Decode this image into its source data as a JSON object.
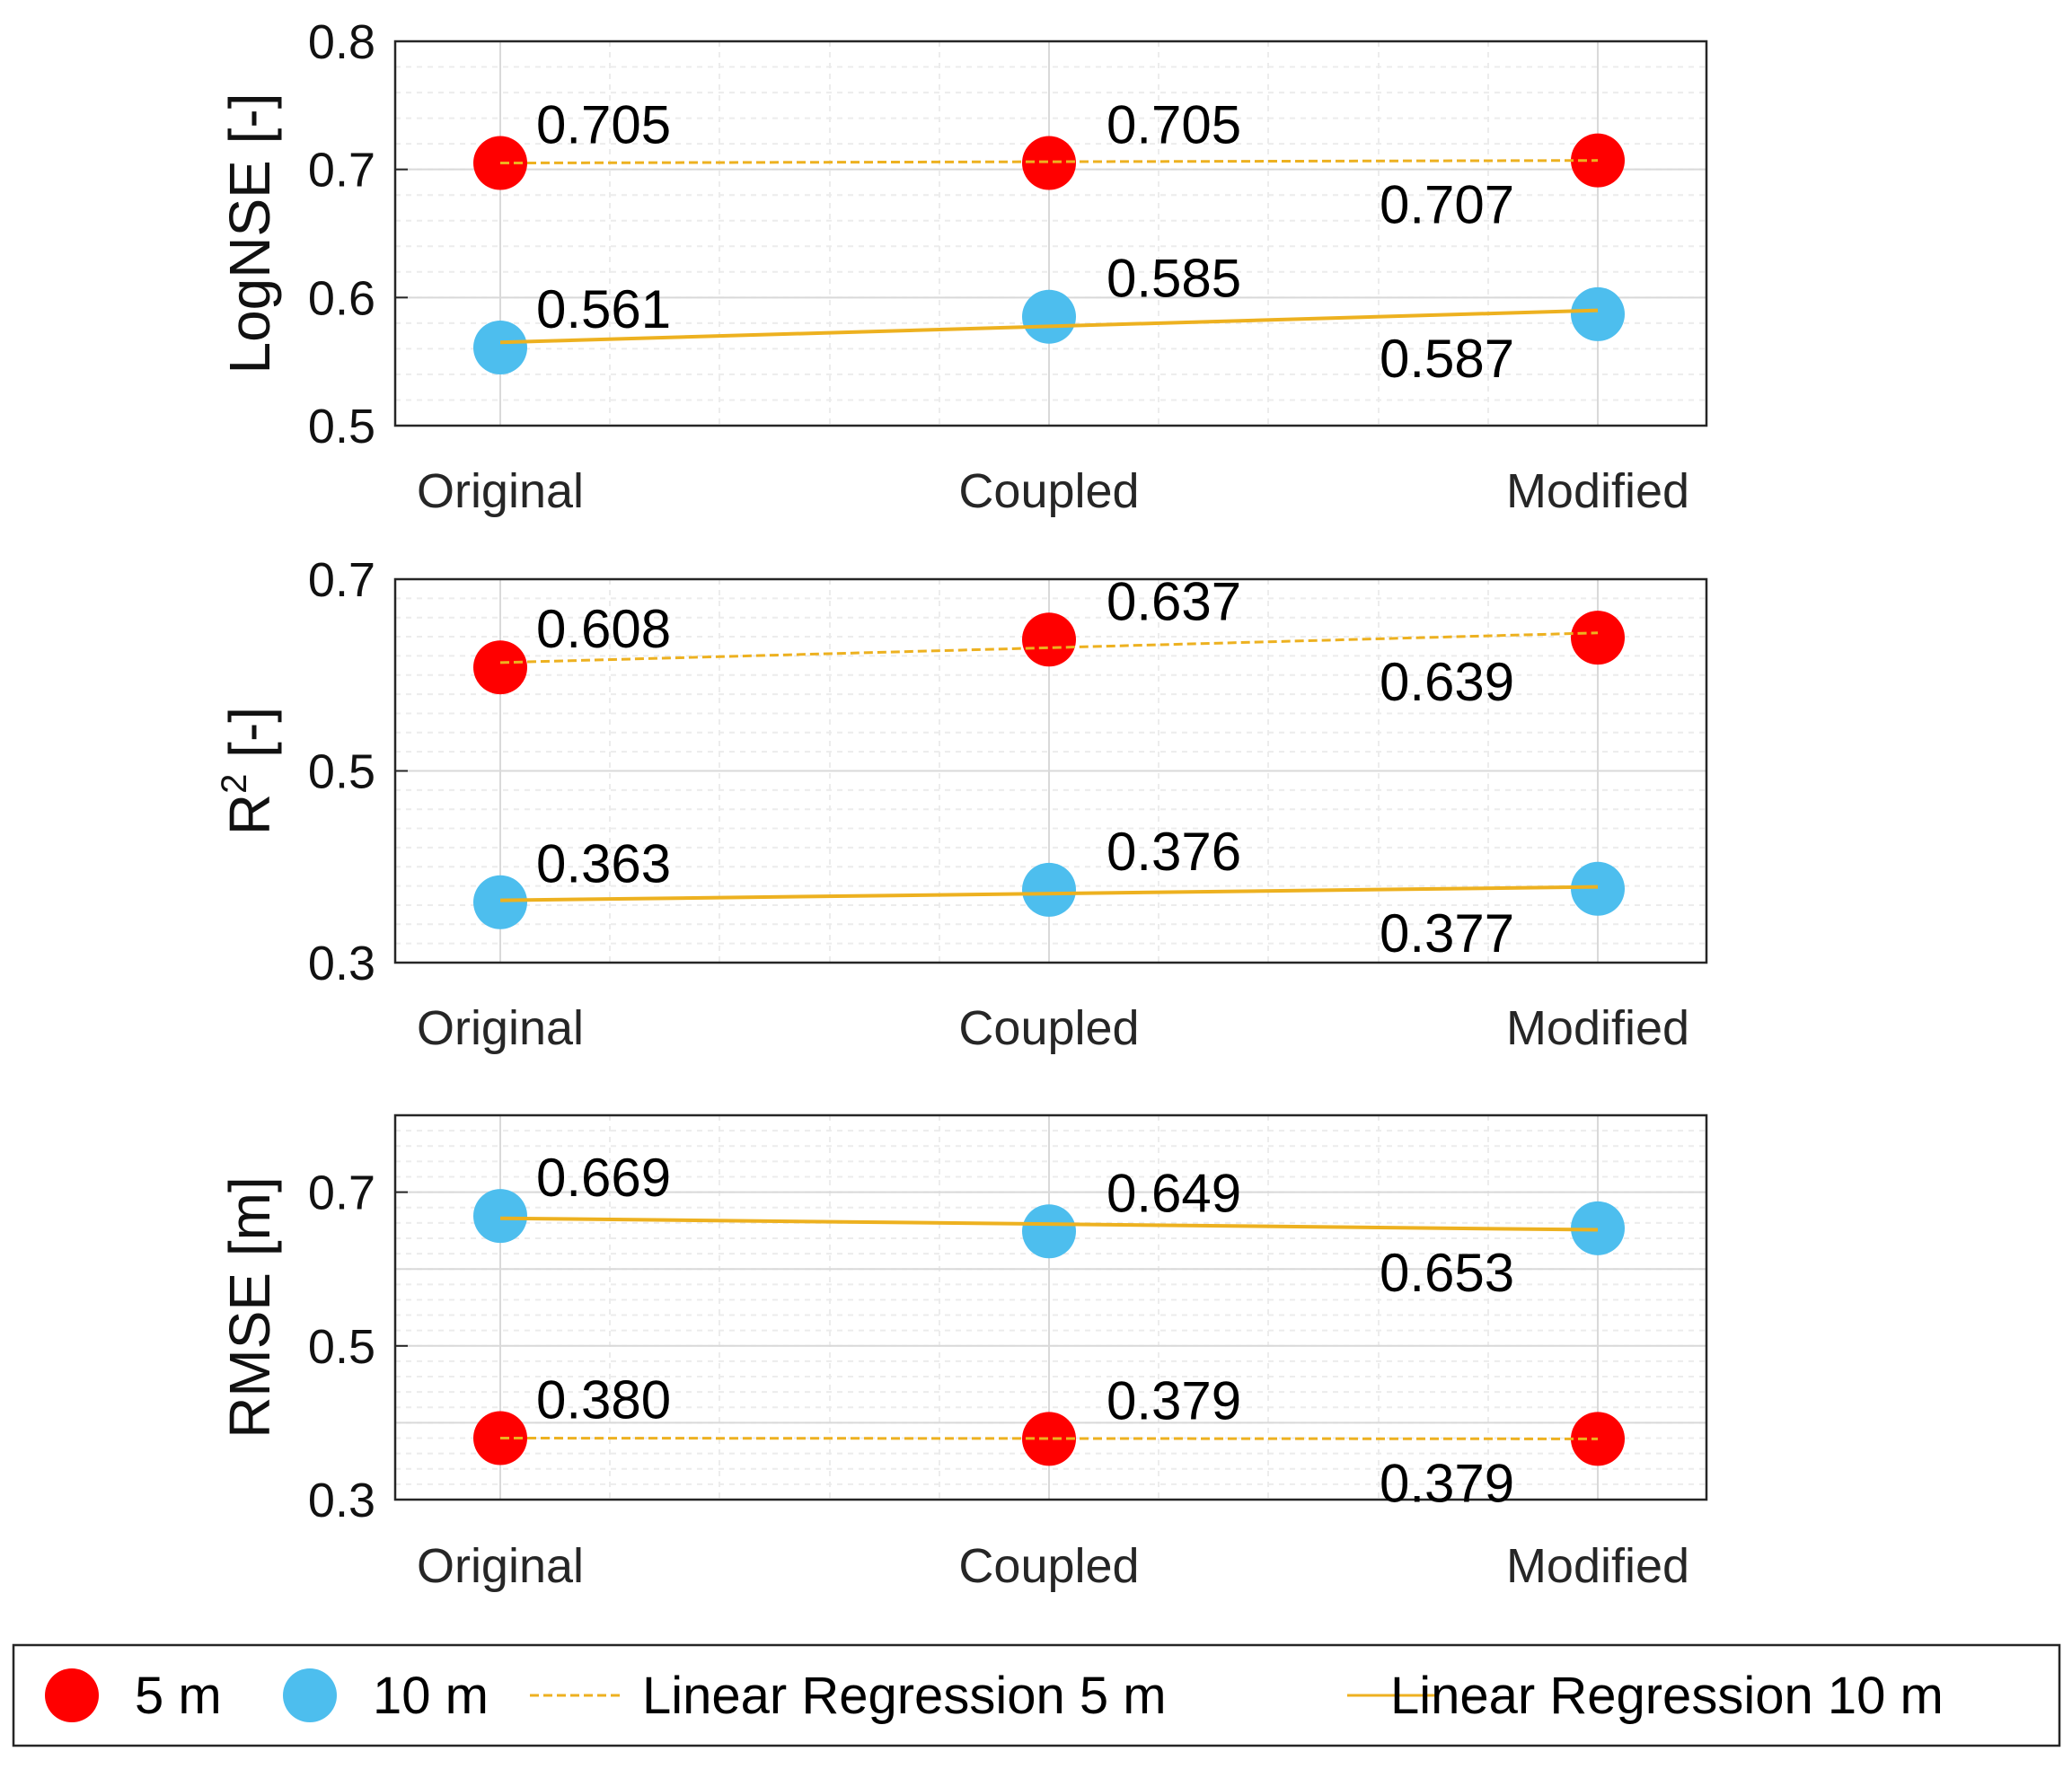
{
  "colors": {
    "series_5m": "#ff0000",
    "series_10m": "#4dbeee",
    "regression": "#edb120",
    "grid": "#d9d9d9",
    "axis": "#262626"
  },
  "chart_data": [
    {
      "type": "scatter",
      "ylabel": "LogNSE [-]",
      "categories": [
        "Original",
        "Coupled",
        "Modified"
      ],
      "ylim": [
        0.5,
        0.8
      ],
      "yticks": [
        "0.5",
        "0.6",
        "0.7",
        "0.8"
      ],
      "grid": true,
      "series": [
        {
          "name": "5 m",
          "color": "#ff0000",
          "values": [
            0.705,
            0.705,
            0.707
          ],
          "labels": [
            "0.705",
            "0.705",
            "0.707"
          ]
        },
        {
          "name": "10 m",
          "color": "#4dbeee",
          "values": [
            0.561,
            0.585,
            0.587
          ],
          "labels": [
            "0.561",
            "0.585",
            "0.587"
          ]
        }
      ],
      "regression": [
        {
          "name": "Linear Regression 5 m",
          "style": "dashed",
          "from": 0.705,
          "to": 0.707
        },
        {
          "name": "Linear Regression 10 m",
          "style": "solid",
          "from": 0.565,
          "to": 0.59
        }
      ]
    },
    {
      "type": "scatter",
      "ylabel_main": "R",
      "ylabel_sup": "2",
      "ylabel_unit": " [-]",
      "categories": [
        "Original",
        "Coupled",
        "Modified"
      ],
      "ylim": [
        0.3,
        0.7
      ],
      "yticks": [
        "0.3",
        "0.5",
        "0.7"
      ],
      "grid": true,
      "series": [
        {
          "name": "5 m",
          "color": "#ff0000",
          "values": [
            0.608,
            0.637,
            0.639
          ],
          "labels": [
            "0.608",
            "0.637",
            "0.639"
          ]
        },
        {
          "name": "10 m",
          "color": "#4dbeee",
          "values": [
            0.363,
            0.376,
            0.377
          ],
          "labels": [
            "0.363",
            "0.376",
            "0.377"
          ]
        }
      ],
      "regression": [
        {
          "name": "Linear Regression 5 m",
          "style": "dashed",
          "from": 0.613,
          "to": 0.644
        },
        {
          "name": "Linear Regression 10 m",
          "style": "solid",
          "from": 0.365,
          "to": 0.379
        }
      ]
    },
    {
      "type": "scatter",
      "ylabel": "RMSE [m]",
      "categories": [
        "Original",
        "Coupled",
        "Modified"
      ],
      "ylim": [
        0.3,
        0.8
      ],
      "yticks": [
        "0.3",
        "0.5",
        "0.7"
      ],
      "grid": true,
      "series": [
        {
          "name": "10 m",
          "color": "#4dbeee",
          "values": [
            0.669,
            0.649,
            0.653
          ],
          "labels": [
            "0.669",
            "0.649",
            "0.653"
          ]
        },
        {
          "name": "5 m",
          "color": "#ff0000",
          "values": [
            0.38,
            0.379,
            0.379
          ],
          "labels": [
            "0.380",
            "0.379",
            "0.379"
          ]
        }
      ],
      "regression": [
        {
          "name": "Linear Regression 10 m",
          "style": "solid",
          "from": 0.666,
          "to": 0.651
        },
        {
          "name": "Linear Regression 5 m",
          "style": "dashed",
          "from": 0.38,
          "to": 0.379
        }
      ]
    }
  ],
  "legend": {
    "position": "bottom",
    "items": [
      {
        "label": "5 m",
        "kind": "marker",
        "color": "#ff0000"
      },
      {
        "label": "10 m",
        "kind": "marker",
        "color": "#4dbeee"
      },
      {
        "label": "Linear Regression 5 m",
        "kind": "line-dashed",
        "color": "#edb120"
      },
      {
        "label": "Linear Regression 10 m",
        "kind": "line-solid",
        "color": "#edb120"
      }
    ]
  }
}
